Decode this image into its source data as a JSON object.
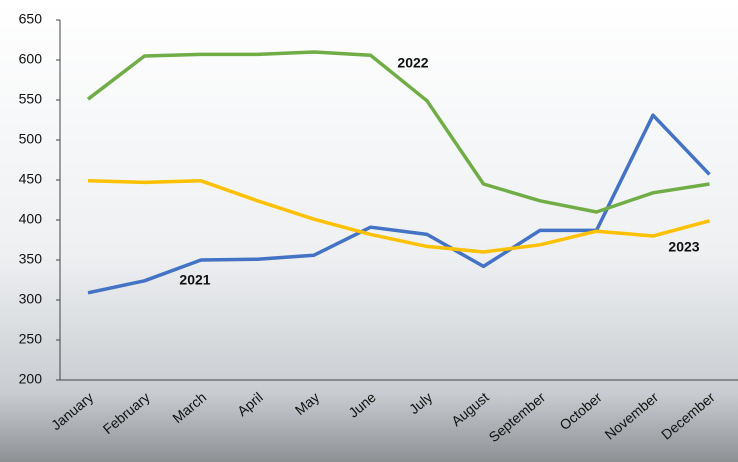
{
  "chart_data": {
    "type": "line",
    "categories": [
      "January",
      "February",
      "March",
      "April",
      "May",
      "June",
      "July",
      "August",
      "September",
      "October",
      "November",
      "December"
    ],
    "series": [
      {
        "name": "2021",
        "color": "#4472c4",
        "values": [
          309,
          324,
          350,
          351,
          356,
          391,
          382,
          342,
          387,
          387,
          531,
          457
        ]
      },
      {
        "name": "2022",
        "color": "#70ad47",
        "values": [
          551,
          605,
          607,
          607,
          610,
          606,
          549,
          445,
          424,
          410,
          434,
          445
        ]
      },
      {
        "name": "2023",
        "color": "#ffc000",
        "values": [
          449,
          447,
          449,
          424,
          401,
          382,
          367,
          360,
          369,
          386,
          380,
          399
        ]
      }
    ],
    "ylim": [
      200,
      650
    ],
    "yticks": [
      200,
      250,
      300,
      350,
      400,
      450,
      500,
      550,
      600,
      650
    ],
    "grid": false
  }
}
